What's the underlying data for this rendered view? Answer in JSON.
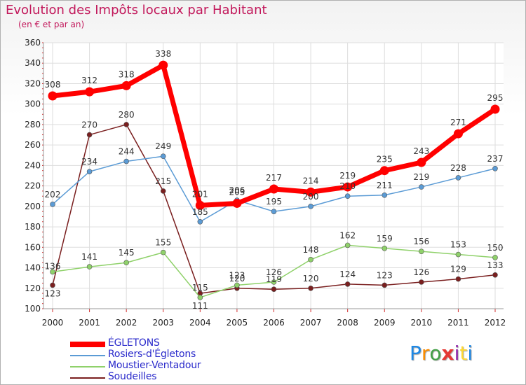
{
  "title": "Evolution des Impôts locaux par Habitant",
  "subtitle": "(en € et par an)",
  "logo": {
    "text": "Proxiti",
    "colors": [
      "#1e88e5",
      "#fb8c00",
      "#43a047",
      "#e53935",
      "#8e24aa",
      "#fdd835",
      "#1e88e5"
    ]
  },
  "chart_data": {
    "type": "line",
    "title": "Evolution des Impôts locaux par Habitant",
    "subtitle": "(en € et par an)",
    "xlabel": "",
    "ylabel": "",
    "x": [
      "2000",
      "2001",
      "2002",
      "2003",
      "2004",
      "2005",
      "2006",
      "2007",
      "2008",
      "2009",
      "2010",
      "2011",
      "2012"
    ],
    "ylim": [
      100,
      360
    ],
    "yticks": [
      100,
      120,
      140,
      160,
      180,
      200,
      220,
      240,
      260,
      280,
      300,
      320,
      340,
      360
    ],
    "grid": true,
    "series": [
      {
        "name": "ÉGLETONS",
        "color": "#ff0000",
        "values": [
          308,
          312,
          318,
          338,
          201,
          203,
          217,
          214,
          219,
          235,
          243,
          271,
          295
        ]
      },
      {
        "name": "Rosiers-d'Égletons",
        "color": "#5b9bd5",
        "values": [
          202,
          234,
          244,
          249,
          185,
          206,
          195,
          200,
          210,
          211,
          219,
          228,
          237
        ]
      },
      {
        "name": "Moustier-Ventadour",
        "color": "#8fd16a",
        "values": [
          136,
          141,
          145,
          155,
          111,
          123,
          126,
          148,
          162,
          159,
          156,
          153,
          150
        ]
      },
      {
        "name": "Soudeilles",
        "color": "#7a1f1f",
        "values": [
          123,
          270,
          280,
          215,
          115,
          120,
          119,
          120,
          124,
          123,
          126,
          129,
          133
        ]
      }
    ]
  }
}
